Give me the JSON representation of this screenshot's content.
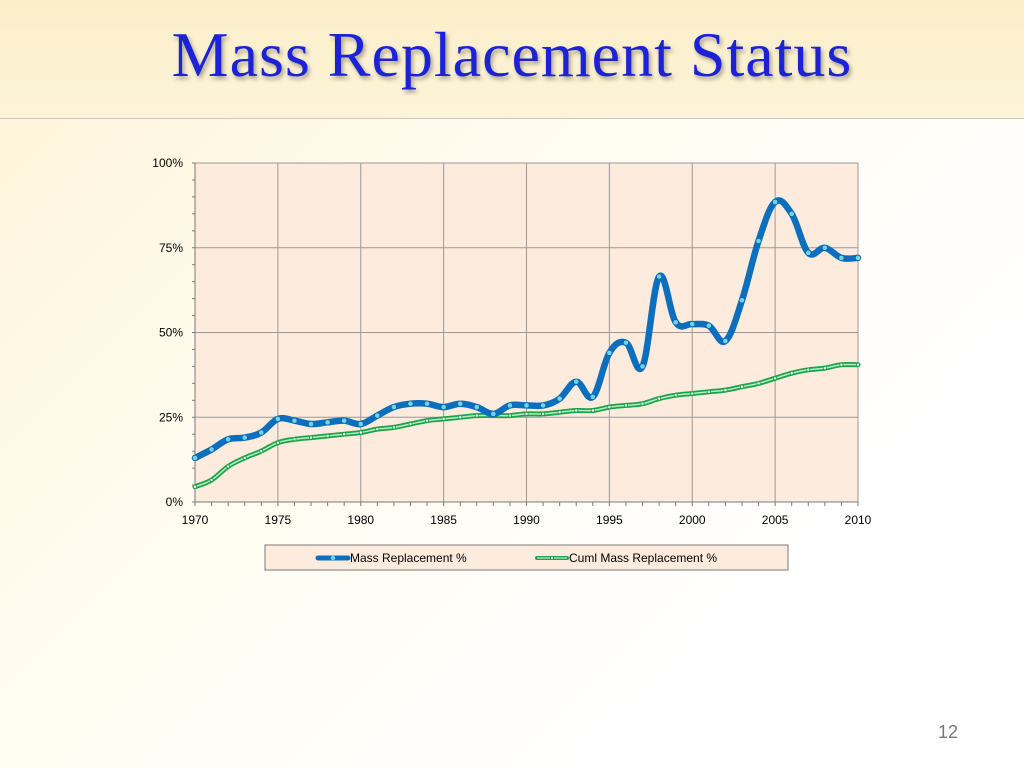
{
  "slide": {
    "title": "Mass Replacement Status",
    "page_number": "12"
  },
  "colors": {
    "series1": "#0b6fbd",
    "series1_marker": "#6fd3ea",
    "series2": "#1aa34a",
    "series2_inner": "#b8ecc5",
    "plot_bg": "#fdebdd",
    "grid": "#9a9a9a"
  },
  "chart_data": {
    "type": "line",
    "title": "",
    "xlabel": "",
    "ylabel": "",
    "xlim": [
      1970,
      2010
    ],
    "ylim": [
      0,
      100
    ],
    "x_ticks": [
      1970,
      1975,
      1980,
      1985,
      1990,
      1995,
      2000,
      2005,
      2010
    ],
    "x_tick_labels": [
      "1970",
      "1975",
      "1980",
      "1985",
      "1990",
      "1995",
      "2000",
      "2005",
      "2010"
    ],
    "y_ticks": [
      0,
      25,
      50,
      75,
      100
    ],
    "y_tick_labels": [
      "0%",
      "25%",
      "50%",
      "75%",
      "100%"
    ],
    "grid": true,
    "legend_position": "bottom",
    "x": [
      1970,
      1971,
      1972,
      1973,
      1974,
      1975,
      1976,
      1977,
      1978,
      1979,
      1980,
      1981,
      1982,
      1983,
      1984,
      1985,
      1986,
      1987,
      1988,
      1989,
      1990,
      1991,
      1992,
      1993,
      1994,
      1995,
      1996,
      1997,
      1998,
      1999,
      2000,
      2001,
      2002,
      2003,
      2004,
      2005,
      2006,
      2007,
      2008,
      2009,
      2010
    ],
    "series": [
      {
        "name": "Mass Replacement %",
        "values": [
          13,
          15.5,
          18.5,
          19,
          20.5,
          24.5,
          24,
          23,
          23.5,
          24,
          23,
          25.5,
          28,
          29,
          29,
          28,
          29,
          28,
          26,
          28.5,
          28.5,
          28.5,
          30.5,
          35.5,
          31,
          44,
          47,
          40,
          66.5,
          53,
          52.5,
          52,
          47.5,
          59.5,
          77,
          88.5,
          85,
          73.5,
          75,
          72,
          72
        ]
      },
      {
        "name": "Cuml Mass Replacement %",
        "values": [
          4.5,
          6.5,
          10.5,
          13,
          15,
          17.5,
          18.5,
          19,
          19.5,
          20,
          20.5,
          21.5,
          22,
          23,
          24,
          24.5,
          25,
          25.5,
          25.5,
          25.5,
          26,
          26,
          26.5,
          27,
          27,
          28,
          28.5,
          29,
          30.5,
          31.5,
          32,
          32.5,
          33,
          34,
          35,
          36.5,
          38,
          39,
          39.5,
          40.5,
          40.5
        ]
      }
    ]
  }
}
